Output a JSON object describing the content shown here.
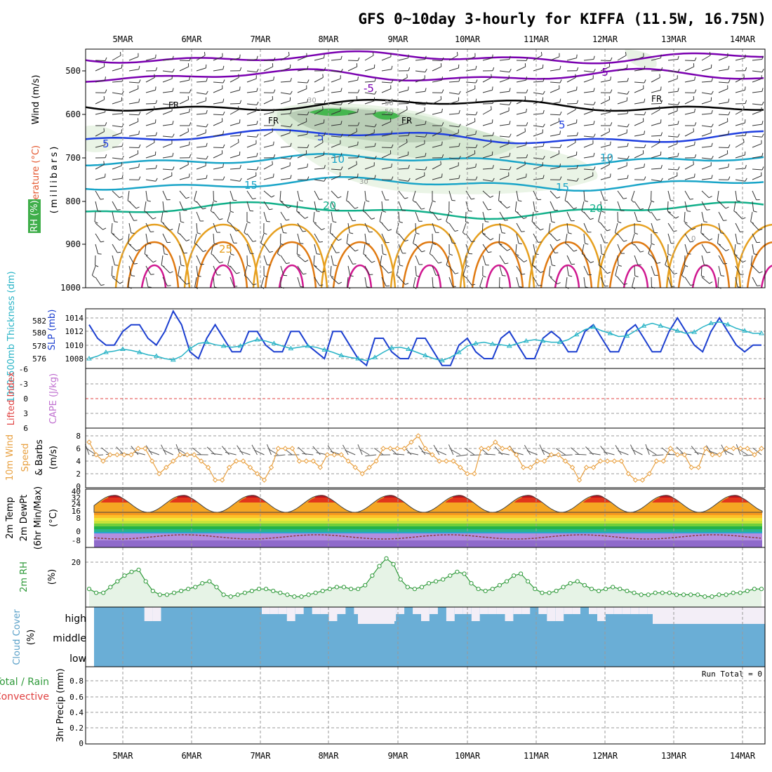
{
  "title": "GFS 0~10day 3-hourly for KIFFA (11.5W, 16.75N)",
  "dates": [
    "5MAR",
    "6MAR",
    "7MAR",
    "8MAR",
    "9MAR",
    "10MAR",
    "11MAR",
    "12MAR",
    "13MAR",
    "14MAR"
  ],
  "colors": {
    "wind_iso": "#7a00b0",
    "temp_blue": "#1f3fe0",
    "temp_teal": "#1aa5c8",
    "temp_green": "#12b08a",
    "temp_orange": "#e6a020",
    "temp_dark_orange": "#e07a12",
    "temp_magenta": "#d01890",
    "freezing": "#000000",
    "rh_green": "#3fae4a",
    "slp_line": "#1c3fd0",
    "thickness_line": "#27b3c6",
    "wind10m_line": "#e8a040",
    "cape_zero": "#e04040",
    "rh2m_line": "#2f9a3a",
    "rh2m_fill": "#e6f3e6",
    "cloud_fill": "#6aaed6",
    "cloud_clear": "#f3eef7"
  },
  "panels": {
    "upper": {
      "labels": {
        "wind": "Wind (m/s)",
        "temperature": "Temperature (°C)",
        "rh": "RH (%)",
        "pressure": "(millibars)"
      },
      "yticks": [
        "500",
        "600",
        "700",
        "800",
        "900",
        "1000"
      ],
      "contour_labels": [
        "-5",
        "-5",
        "5",
        "5",
        "5",
        "10",
        "10",
        "15",
        "15",
        "20",
        "20",
        "25",
        "FR",
        "FR",
        "FR",
        "FR",
        "30",
        "50",
        "50",
        "30",
        "0"
      ]
    },
    "slp_thickness": {
      "labels": {
        "thickness": "1000-500mb Thickness (dm)",
        "slp": "SLP (mb)"
      },
      "left_ticks": [
        "582",
        "580",
        "578",
        "576"
      ],
      "right_ticks": [
        "1014",
        "1012",
        "1010",
        "1008"
      ]
    },
    "li_cape": {
      "labels": {
        "li": "Lifted Index",
        "cape": "CAPE (J/kg)"
      },
      "yticks": [
        "-6",
        "-3",
        "0",
        "3",
        "6"
      ]
    },
    "wind10m": {
      "labels": {
        "a": "10m Wind",
        "b": "Speed",
        "c": "(m/s)",
        "d": "& Barbs"
      },
      "yticks": [
        "8",
        "6",
        "4",
        "2",
        "0"
      ]
    },
    "temp2m": {
      "labels": {
        "a": "2m Temp",
        "b": "2m DewPt",
        "c": "(6hr Min/Max)",
        "d": "(°C)"
      },
      "yticks": [
        "40",
        "32",
        "24",
        "16",
        "8",
        "0",
        "-8"
      ]
    },
    "rh2m": {
      "labels": {
        "a": "2m RH",
        "b": "(%)"
      },
      "yticks": [
        "20"
      ]
    },
    "cloud": {
      "labels": {
        "a": "Cloud Cover",
        "b": "(%)"
      },
      "levels": [
        "high",
        "middle",
        "low"
      ]
    },
    "precip": {
      "labels": {
        "a": "Total / Rain",
        "b": "Convective",
        "c": "3hr Precip (mm)"
      },
      "yticks": [
        "0.8",
        "0.6",
        "0.4",
        "0.2",
        "0"
      ],
      "run_total": "Run Total = 0"
    }
  },
  "chart_data": [
    {
      "type": "line",
      "title": "1000-500mb Thickness (dm) & SLP (mb)",
      "x_unit": "3-hourly steps from 4 MAR 12Z",
      "series": [
        {
          "name": "SLP (mb)",
          "values": [
            1013,
            1011,
            1010,
            1010,
            1012,
            1013,
            1013,
            1011,
            1010,
            1012,
            1015,
            1013,
            1009,
            1008,
            1011,
            1013,
            1011,
            1009,
            1009,
            1012,
            1012,
            1010,
            1009,
            1009,
            1012,
            1012,
            1010,
            1009,
            1008,
            1012,
            1012,
            1010,
            1008,
            1007,
            1011,
            1011,
            1009,
            1008,
            1008,
            1011,
            1011,
            1009,
            1007,
            1007,
            1010,
            1011,
            1009,
            1008,
            1008,
            1011,
            1012,
            1010,
            1008,
            1008,
            1011,
            1012,
            1011,
            1009,
            1009,
            1012,
            1013,
            1011,
            1009,
            1009,
            1012,
            1013,
            1011,
            1009,
            1009,
            1012,
            1014,
            1012,
            1010,
            1009,
            1012,
            1014,
            1012,
            1010,
            1009,
            1010,
            1010
          ]
        },
        {
          "name": "1000-500mb Thickness (dm)",
          "values": [
            576.0,
            576.4,
            577.0,
            577.2,
            577.5,
            577.3,
            577.0,
            576.6,
            576.4,
            576.0,
            575.8,
            576.4,
            577.6,
            578.4,
            578.6,
            578.2,
            578.0,
            577.8,
            578.0,
            578.6,
            579.0,
            578.8,
            578.4,
            578.0,
            577.6,
            577.8,
            578.0,
            577.8,
            577.4,
            577.0,
            576.5,
            576.2,
            576.0,
            575.7,
            576.2,
            577.0,
            577.7,
            577.8,
            577.5,
            577.0,
            576.5,
            576.0,
            575.7,
            576.2,
            577.0,
            578.0,
            578.4,
            578.6,
            578.3,
            578.2,
            578.0,
            578.4,
            578.8,
            579.0,
            578.8,
            578.6,
            578.6,
            579.0,
            579.8,
            580.6,
            581.0,
            580.4,
            580.0,
            579.5,
            579.6,
            580.4,
            581.2,
            581.6,
            581.2,
            580.8,
            580.4,
            580.0,
            580.2,
            581.0,
            581.6,
            581.8,
            581.4,
            580.8,
            580.4,
            580.0,
            580.0
          ]
        }
      ]
    },
    {
      "type": "line",
      "title": "10m Wind Speed (m/s)",
      "series": [
        {
          "name": "10m Wind Speed (m/s)",
          "values": [
            7,
            5,
            4,
            5,
            5,
            5,
            5,
            6,
            6,
            4,
            2,
            3,
            4,
            5,
            5,
            5,
            4,
            3,
            1,
            1,
            3,
            4,
            4,
            3,
            2,
            1,
            3,
            6,
            6,
            6,
            4,
            4,
            4,
            3,
            5,
            5,
            5,
            4,
            3,
            2,
            3,
            4,
            6,
            6,
            6,
            6,
            7,
            8,
            6,
            5,
            4,
            4,
            4,
            3,
            2,
            2,
            6,
            6,
            7,
            6,
            6,
            5,
            3,
            3,
            4,
            4,
            5,
            5,
            4,
            3,
            1,
            3,
            3,
            4,
            4,
            4,
            4,
            2,
            1,
            1,
            2,
            4,
            4,
            6,
            5,
            5,
            3,
            3,
            6,
            5,
            5,
            6,
            6,
            6,
            6,
            5,
            6
          ]
        }
      ]
    },
    {
      "type": "line",
      "title": "2m RH (%)",
      "series": [
        {
          "name": "2m RH (%)",
          "values": [
            8,
            6,
            6,
            9,
            12,
            15,
            17,
            18,
            12,
            7,
            5,
            5,
            6,
            7,
            8,
            9,
            11,
            12,
            9,
            5,
            4,
            5,
            6,
            7,
            8,
            8,
            7,
            6,
            5,
            4,
            4,
            5,
            6,
            7,
            8,
            9,
            9,
            8,
            8,
            10,
            15,
            20,
            24,
            21,
            13,
            9,
            8,
            9,
            11,
            12,
            13,
            15,
            17,
            16,
            11,
            8,
            7,
            8,
            10,
            12,
            15,
            16,
            12,
            8,
            6,
            6,
            7,
            9,
            11,
            12,
            10,
            8,
            7,
            8,
            9,
            8,
            7,
            6,
            5,
            5,
            6,
            6,
            6,
            5,
            5,
            5,
            5,
            4,
            4,
            5,
            5,
            6,
            6,
            7,
            8,
            8
          ]
        }
      ]
    }
  ]
}
